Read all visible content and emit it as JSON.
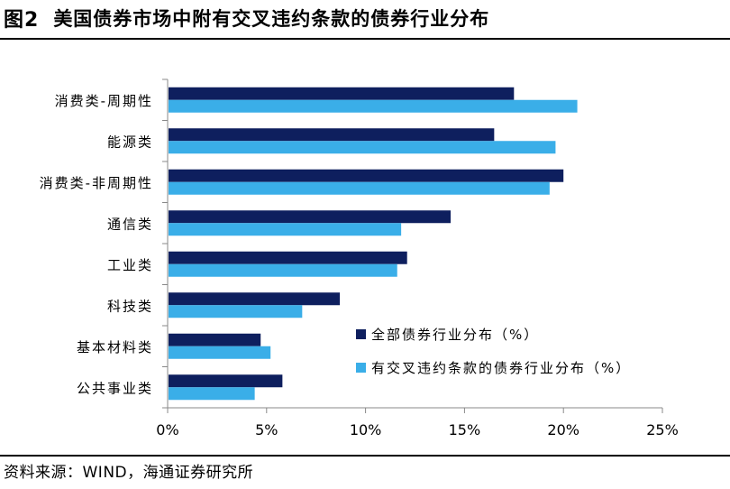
{
  "header": {
    "figure_no": "图2",
    "title": "美国债券市场中附有交叉违约条款的债券行业分布"
  },
  "footer": {
    "source": "资料来源：WIND，海通证券研究所"
  },
  "chart_data": {
    "type": "bar",
    "orientation": "horizontal",
    "title": "美国债券市场中附有交叉违约条款的债券行业分布",
    "categories": [
      "消费类-周期性",
      "能源类",
      "消费类-非周期性",
      "通信类",
      "工业类",
      "科技类",
      "基本材料类",
      "公共事业类"
    ],
    "series": [
      {
        "name": "全部债券行业分布（%）",
        "color": "#0e1f5e",
        "values": [
          17.5,
          16.5,
          20.0,
          14.3,
          12.1,
          8.7,
          4.7,
          5.8
        ]
      },
      {
        "name": "有交叉违约条款的债券行业分布（%）",
        "color": "#3aaee8",
        "values": [
          20.7,
          19.6,
          19.3,
          11.8,
          11.6,
          6.8,
          5.2,
          4.4
        ]
      }
    ],
    "xlim": [
      0,
      25
    ],
    "xticks": [
      "0%",
      "5%",
      "10%",
      "15%",
      "20%",
      "25%"
    ],
    "xtick_values": [
      0,
      5,
      10,
      15,
      20,
      25
    ],
    "xlabel": "",
    "ylabel": "",
    "grid": false,
    "legend_position": "bottom-right"
  }
}
